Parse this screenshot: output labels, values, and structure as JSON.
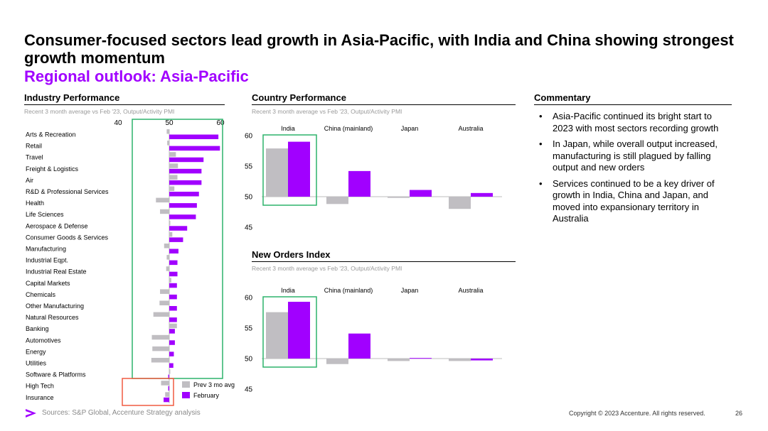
{
  "title": "Consumer-focused sectors lead growth in Asia-Pacific, with India and China showing strongest growth momentum",
  "subtitle": "Regional outlook: Asia-Pacific",
  "colors": {
    "accent": "#a100ff",
    "prev": "#c0bec2",
    "highlight_box": "#2db36b",
    "alert_box": "#f05a40"
  },
  "sections": {
    "industry": {
      "heading": "Industry Performance",
      "sub": "Recent 3 month average vs Feb '23, Output/Activity PMI"
    },
    "country": {
      "heading": "Country Performance",
      "sub": "Recent 3 month average vs Feb '23, Output/Activity PMI"
    },
    "orders": {
      "heading": "New Orders Index",
      "sub": "Recent 3 month average vs Feb '23, Output/Activity PMI"
    },
    "commentary": {
      "heading": "Commentary"
    }
  },
  "commentary": [
    "Asia-Pacific continued its bright start to 2023 with most sectors recording growth",
    "In Japan, while overall output increased, manufacturing is still plagued by falling output and new orders",
    "Services continued to be a key driver of growth in India, China and Japan, and moved into expansionary territory in Australia"
  ],
  "footer": {
    "sources": "Sources: S&P Global, Accenture Strategy analysis",
    "copyright": "Copyright © 2023 Accenture. All rights reserved.",
    "page": "26",
    "logo_icon": "accenture-chevron-icon"
  },
  "chart_data": [
    {
      "id": "industry",
      "type": "bar",
      "orientation": "horizontal",
      "xlim": [
        40,
        60
      ],
      "xticks": [
        40,
        50,
        60
      ],
      "baseline": 50,
      "legend": {
        "position": "bottom-right",
        "labels": [
          "Prev 3 mo avg",
          "February"
        ]
      },
      "categories": [
        "Arts & Recreation",
        "Retail",
        "Travel",
        "Freight & Logistics",
        "Air",
        "R&D & Professional Services",
        "Health",
        "Life Sciences",
        "Aerospace & Defense",
        "Consumer Goods & Services",
        "Manufacturing",
        "Industrial Eqpt.",
        "Industrial Real Estate",
        "Capital Markets",
        "Chemicals",
        "Other Manufacturing",
        "Natural Resources",
        "Banking",
        "Automotives",
        "Energy",
        "Utilities",
        "Software & Platforms",
        "High Tech",
        "Insurance"
      ],
      "series": [
        {
          "name": "Prev 3 mo avg",
          "values": [
            49.5,
            49.6,
            51.3,
            51.7,
            51.6,
            51.0,
            47.4,
            48.2,
            50.2,
            50.6,
            49.0,
            49.5,
            49.4,
            50.4,
            48.2,
            48.1,
            46.9,
            51.5,
            46.6,
            46.7,
            46.5,
            50.2,
            48.4,
            49.2
          ]
        },
        {
          "name": "February",
          "values": [
            59.6,
            59.9,
            56.7,
            56.3,
            56.3,
            55.8,
            55.4,
            55.2,
            53.5,
            52.7,
            51.8,
            51.6,
            51.6,
            51.5,
            51.5,
            51.5,
            51.5,
            51.1,
            51.1,
            50.9,
            50.8,
            49.8,
            49.8,
            48.9
          ]
        }
      ]
    },
    {
      "id": "country",
      "type": "bar",
      "categories": [
        "India",
        "China (mainland)",
        "Japan",
        "Australia"
      ],
      "baseline": 50,
      "ylim": [
        45,
        60
      ],
      "yticks": [
        45,
        50,
        55,
        60
      ],
      "series": [
        {
          "name": "Prev 3 mo avg",
          "values": [
            57.9,
            48.8,
            49.8,
            48.0
          ]
        },
        {
          "name": "February",
          "values": [
            59.0,
            54.2,
            51.1,
            50.6
          ]
        }
      ]
    },
    {
      "id": "orders",
      "type": "bar",
      "categories": [
        "India",
        "China (mainland)",
        "Japan",
        "Australia"
      ],
      "baseline": 50,
      "ylim": [
        45,
        60
      ],
      "yticks": [
        45,
        50,
        55,
        60
      ],
      "series": [
        {
          "name": "Prev 3 mo avg",
          "values": [
            57.6,
            49.1,
            49.6,
            49.6
          ]
        },
        {
          "name": "February",
          "values": [
            59.3,
            54.1,
            50.1,
            49.7
          ]
        }
      ]
    }
  ]
}
